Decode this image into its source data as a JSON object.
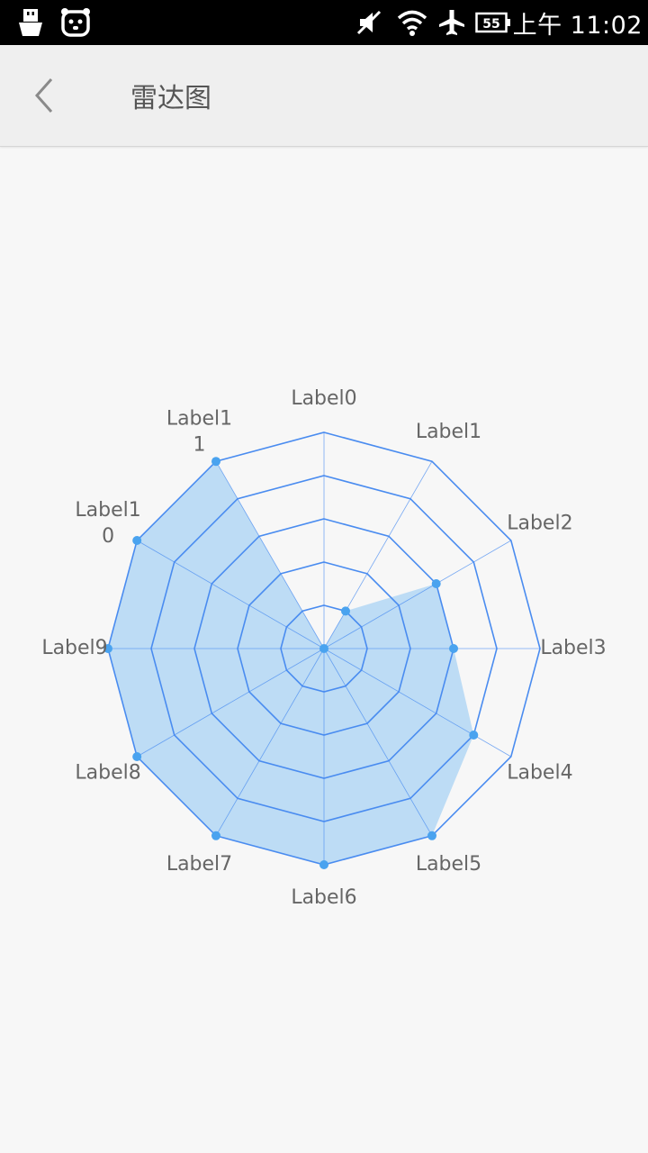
{
  "status_bar": {
    "time": "上午 11:02",
    "battery_level": "55",
    "icons": [
      "usb-icon",
      "notification-face-icon",
      "mute-icon",
      "wifi-icon",
      "airplane-mode-icon",
      "battery-icon"
    ]
  },
  "app_bar": {
    "title": "雷达图",
    "back_icon": "chevron-left-icon"
  },
  "colors": {
    "grid_line": "#4a8cf0",
    "fill": "#b3d7f5",
    "point": "#4aa3ef",
    "label": "#666666"
  },
  "chart_data": {
    "type": "radar",
    "title": "",
    "categories": [
      "Label0",
      "Label1",
      "Label2",
      "Label3",
      "Label4",
      "Label5",
      "Label6",
      "Label7",
      "Label8",
      "Label9",
      "Label10",
      "Label11"
    ],
    "display_labels": [
      [
        "Label0"
      ],
      [
        "Label1"
      ],
      [
        "Label2"
      ],
      [
        "Label3"
      ],
      [
        "Label4"
      ],
      [
        "Label5"
      ],
      [
        "Label6"
      ],
      [
        "Label7"
      ],
      [
        "Label8"
      ],
      [
        "Label9"
      ],
      [
        "Label1",
        "0"
      ],
      [
        "Label1",
        "1"
      ]
    ],
    "series": [
      {
        "values": [
          0,
          0.2,
          0.6,
          0.6,
          0.8,
          1.0,
          1.0,
          1.0,
          1.0,
          1.0,
          1.0,
          1.0
        ]
      }
    ],
    "max": 1.0,
    "rings": 5,
    "grid": true,
    "legend": "none"
  }
}
